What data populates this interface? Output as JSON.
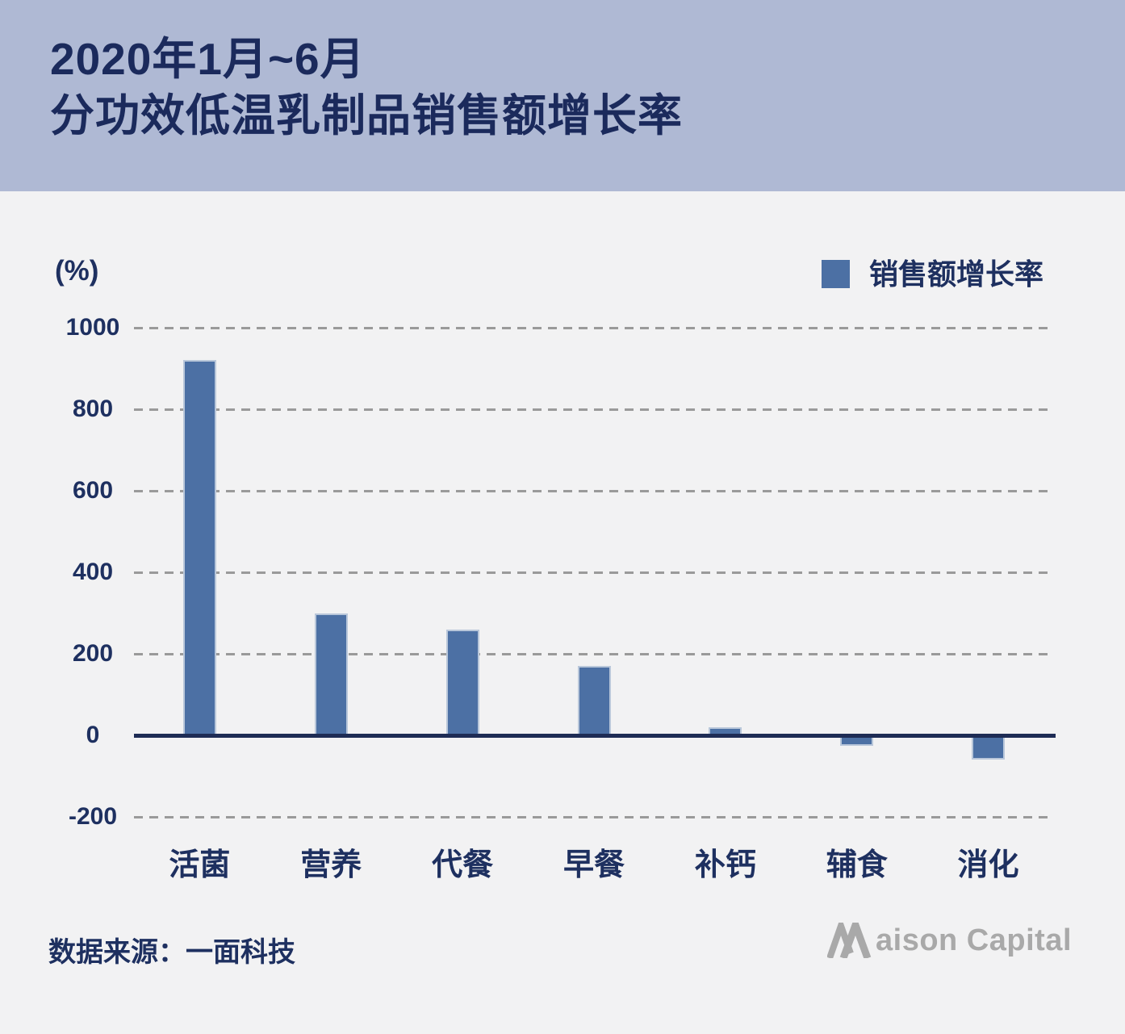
{
  "header": {
    "title_line1": "2020年1月~6月",
    "title_line2": "分功效低温乳制品销售额增长率"
  },
  "chart": {
    "unit_label": "(%)",
    "legend_label": "销售额增长率"
  },
  "chart_data": {
    "type": "bar",
    "title": "2020年1月~6月分功效低温乳制品销售额增长率",
    "categories": [
      "活菌",
      "营养",
      "代餐",
      "早餐",
      "补钙",
      "辅食",
      "消化"
    ],
    "series": [
      {
        "name": "销售额增长率",
        "values": [
          920,
          300,
          260,
          170,
          20,
          -25,
          -60
        ]
      }
    ],
    "ylabel": "(%)",
    "yticks": [
      1000,
      800,
      600,
      400,
      200,
      0,
      -200
    ],
    "ylim": [
      -200,
      1000
    ],
    "grid": "horizontal-dashed",
    "legend_position": "top-right"
  },
  "footer": {
    "source": "数据来源：一面科技",
    "brand": "Maison Capital",
    "brand_rest": "aison Capital"
  },
  "colors": {
    "background": "#f2f2f3",
    "header_bg": "#afb9d4",
    "title_text": "#1b2a5c",
    "axis_text": "#1e3060",
    "bar_fill": "#4c70a4",
    "bar_stroke": "#b9c7da",
    "zero_line": "#1e2c55",
    "gridline": "#9a9a9a",
    "brand_gray": "#a9a9a9"
  }
}
